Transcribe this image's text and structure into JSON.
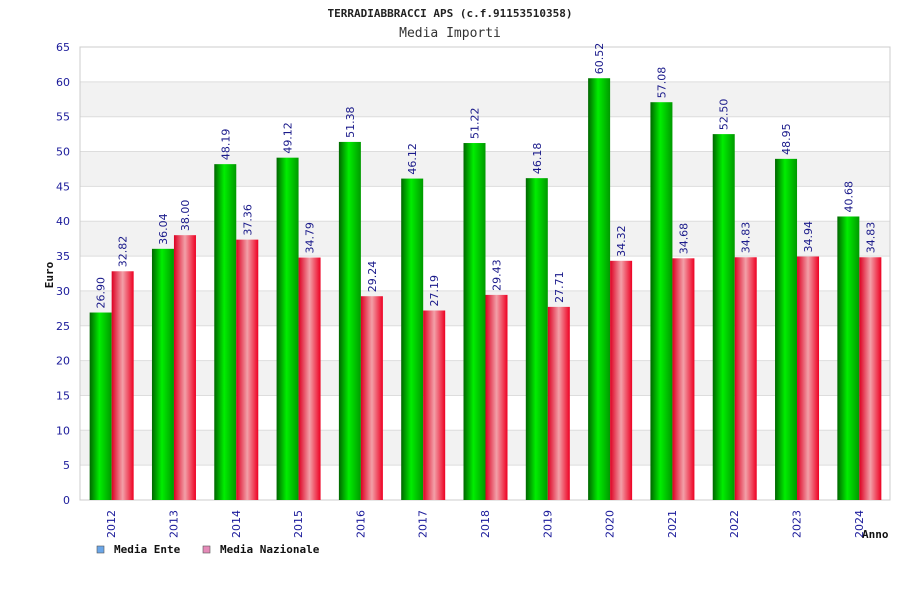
{
  "chart_data": {
    "type": "bar",
    "title": "TERRADIABBRACCI APS (c.f.91153510358)",
    "subtitle": "Media Importi",
    "xlabel": "Anno",
    "ylabel": "Euro",
    "ylim": [
      0,
      65
    ],
    "yticks": [
      "0",
      "5",
      "10",
      "15",
      "20",
      "25",
      "30",
      "35",
      "40",
      "45",
      "50",
      "55",
      "60",
      "65"
    ],
    "categories": [
      "2012",
      "2013",
      "2014",
      "2015",
      "2016",
      "2017",
      "2018",
      "2019",
      "2020",
      "2021",
      "2022",
      "2023",
      "2024"
    ],
    "series": [
      {
        "name": "Media Ente",
        "color": "#00cc00",
        "legend_color": "#6aa6e8",
        "values": [
          26.9,
          36.04,
          48.19,
          49.12,
          51.38,
          46.12,
          51.22,
          46.18,
          60.52,
          57.08,
          52.5,
          48.95,
          40.68
        ],
        "labels": [
          "26.90",
          "36.04",
          "48.19",
          "49.12",
          "51.38",
          "46.12",
          "51.22",
          "46.18",
          "60.52",
          "57.08",
          "52.50",
          "48.95",
          "40.68"
        ]
      },
      {
        "name": "Media Nazionale",
        "color": "#ee1133",
        "legend_color": "#e58ab8",
        "values": [
          32.82,
          38.0,
          37.36,
          34.79,
          29.24,
          27.19,
          29.43,
          27.71,
          34.32,
          34.68,
          34.83,
          34.94,
          34.83
        ],
        "labels": [
          "32.82",
          "38.00",
          "37.36",
          "34.79",
          "29.24",
          "27.19",
          "29.43",
          "27.71",
          "34.32",
          "34.68",
          "34.83",
          "34.94",
          "34.83"
        ]
      }
    ],
    "grid": true,
    "legend_position": "bottom-left"
  }
}
